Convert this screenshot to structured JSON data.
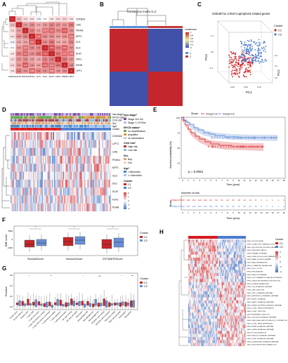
{
  "panels": {
    "A": {
      "letter": "A",
      "genes": [
        "CDKN2A",
        "LIAS",
        "PDHA1",
        "MTF1",
        "GLS",
        "DLD",
        "DLAT",
        "FDX1",
        "PDHB",
        "LIPT1"
      ],
      "values": [
        [
          "1",
          "0.22",
          "0.12",
          "0.10",
          "-0.06",
          "0.01",
          "0.08",
          "0.12",
          "0.14",
          "0.09"
        ],
        [
          "0.22",
          "1",
          "0.33",
          "0.38",
          "0.29",
          "0.34",
          "0.41",
          "0.37",
          "0.35",
          "0.44"
        ],
        [
          "0.12",
          "0.33",
          "1",
          "0.42",
          "0.31",
          "0.47",
          "0.51",
          "0.39",
          "0.56",
          "0.36"
        ],
        [
          "0.10",
          "0.38",
          "0.42",
          "1",
          "0.52",
          "0.40",
          "0.38",
          "0.33",
          "0.36",
          "0.48"
        ],
        [
          "-0.06",
          "0.29",
          "0.31",
          "0.52",
          "1",
          "0.39",
          "0.45",
          "0.28",
          "0.31",
          "0.41"
        ],
        [
          "0.01",
          "0.34",
          "0.47",
          "0.40",
          "0.39",
          "1",
          "0.58",
          "0.42",
          "0.53",
          "0.37"
        ],
        [
          "0.08",
          "0.41",
          "0.51",
          "0.38",
          "0.45",
          "0.58",
          "1",
          "0.44",
          "0.49",
          "0.46"
        ],
        [
          "0.12",
          "0.37",
          "0.39",
          "0.33",
          "0.28",
          "0.42",
          "0.44",
          "1",
          "0.45",
          "0.35"
        ],
        [
          "0.14",
          "0.35",
          "0.56",
          "0.36",
          "0.31",
          "0.53",
          "0.49",
          "0.45",
          "1",
          "0.38"
        ],
        [
          "0.09",
          "0.44",
          "0.36",
          "0.48",
          "0.41",
          "0.37",
          "0.46",
          "0.35",
          "0.38",
          "1"
        ]
      ]
    },
    "B": {
      "letter": "B",
      "title": "Consensus matrix k=2",
      "legend_title": "consensus",
      "legend_ticks": [
        "0",
        "0.2",
        "0.4",
        "0.6",
        "0.8",
        "1"
      ],
      "cluster_labels": [
        "1",
        "2"
      ]
    },
    "C": {
      "letter": "C",
      "title": "GSE48711 cohort-cuproptosis related genes",
      "xlabel": "PC1",
      "ylabel": "PC3",
      "zlabel": "PC2",
      "legend_title": "Cluster",
      "legend_items": [
        "C1",
        "C2"
      ],
      "colors": {
        "C1": "#d7191c",
        "C2": "#4a7bd0"
      }
    },
    "D": {
      "letter": "D",
      "track_labels": [
        "Inss stage*",
        "MYCN status*",
        "COG risk*",
        "Sex",
        "Age*",
        "Cluster"
      ],
      "genes": [
        "CDKN2A",
        "LIPT1",
        "LIAS",
        "PDHA1",
        "MTF1",
        "GLS",
        "DLD",
        "DLAT",
        "FDX1",
        "PDHB"
      ],
      "legend": {
        "inss_title": "Inss stage*",
        "inss": [
          "Stage 3/4-3/4",
          "Stage 1-3+Fl/4s"
        ],
        "mycn_title": "MYCN status*",
        "mycn": [
          "no amplification",
          "amplified",
          "no information"
        ],
        "cog_title": "COG risk*",
        "cog": [
          "High risk",
          "Low risk"
        ],
        "sex_title": "Sex",
        "sex": [
          "Boy",
          "Girl"
        ],
        "age_title": "Age*",
        "age": [
          ">18months",
          "<=18months"
        ],
        "cluster_title": "Cluster",
        "cluster": [
          "C1",
          "C2"
        ],
        "scale_ticks": [
          "2",
          "1",
          "0",
          "-1",
          "-2"
        ]
      }
    },
    "E": {
      "letter": "E",
      "legend_title": "Strata",
      "legend_items": [
        "Group=C1",
        "Group=C2"
      ],
      "ylabel": "Survival probability (%)",
      "xlabel": "Time (year)",
      "x_ticks": [
        "0",
        "1",
        "2",
        "3",
        "4",
        "5",
        "6",
        "7",
        "8",
        "9",
        "10",
        "11",
        "12",
        "13",
        "14",
        "15",
        "16",
        "17",
        "18"
      ],
      "y_ticks": [
        "100",
        "75",
        "50",
        "25",
        "0"
      ],
      "pvalue": "p = 0.0061",
      "risk_title": "Number at risk",
      "risk_strata_label": "Strata",
      "risk_rows": [
        {
          "label": "Group=C1",
          "values": [
            "249",
            "196",
            "152",
            "118",
            "102",
            "82",
            "64",
            "51",
            "43",
            "25",
            "18",
            "13",
            "13",
            "8",
            "3",
            "1",
            "1",
            "1",
            "1"
          ]
        },
        {
          "label": "Group=C2",
          "values": [
            "249",
            "207",
            "182",
            "164",
            "143",
            "118",
            "99",
            "84",
            "65",
            "55",
            "44",
            "30",
            "23",
            "15",
            "9",
            "6",
            "3",
            "1",
            "0"
          ]
        }
      ],
      "risk_xlabel": "Time (year)"
    },
    "F": {
      "letter": "F",
      "ylabel": "TME score",
      "categories": [
        "StromalScore",
        "ImmuneScore",
        "ESTIMATEScore"
      ],
      "sig": [
        "*",
        "*",
        "*"
      ],
      "y_ticks": [
        "2000",
        "0",
        "-2000"
      ],
      "legend_title": "Cluster",
      "legend_items": [
        "C1",
        "C2"
      ]
    },
    "G": {
      "letter": "G",
      "ylabel": "Fraction",
      "y_ticks": [
        "0.6",
        "0.4",
        "0.2",
        "0.0"
      ],
      "legend_title": "Cluster",
      "legend_items": [
        "C1",
        "C2"
      ],
      "cells": [
        "B cells naive",
        "B cells memory",
        "Plasma cells",
        "T cells CD8",
        "T cells CD4 naive",
        "T cells CD4 memory resting",
        "T cells CD4 memory activated",
        "T cells follicular helper",
        "T cells regulatory",
        "T cells gamma delta",
        "NK cells resting",
        "NK cells activated",
        "Monocytes",
        "Macrophages M0",
        "Macrophages M1",
        "Macrophages M2",
        "Dendritic cells resting",
        "Dendritic cells activated",
        "Mast cells resting",
        "Mast cells activated",
        "Eosinophils",
        "Neutrophils"
      ],
      "sig": [
        "",
        "",
        "*",
        "",
        "",
        "",
        "**",
        "",
        "",
        "",
        "",
        "",
        "*",
        "",
        "",
        "ns",
        "",
        "",
        "",
        "*",
        "",
        "***"
      ]
    },
    "H": {
      "letter": "H",
      "legend_title": "Cluster",
      "legend_items": [
        "C1",
        "C2"
      ],
      "scale_ticks": [
        "4",
        "2",
        "0",
        "-2",
        "-4"
      ],
      "pathways": [
        "KEGG_SPLICEOSOME",
        "KEGG_OLFACTORY_TRANSDUCTION",
        "KEGG_NUCLEOTIDE_EXCISION_REPAIR",
        "KEGG_DNA_REPLICATION",
        "KEGG_MISMATCH_REPAIR",
        "KEGG_HOMOLOGOUS_RECOMBINATION",
        "KEGG_BASE_EXCISION_REPAIR",
        "KEGG_RNA_DEGRADATION",
        "KEGG_PYRIMIDINE_METABOLISM",
        "KEGG_CELL_CYCLE",
        "KEGG_PROTEASOME",
        "KEGG_RNA_POLYMERASE",
        "KEGG_GLYCOSAMINOGLYCAN_BIOSYNTHESIS",
        "KEGG_UBIQUITIN_MEDIATED_PROTEOLYSIS",
        "KEGG_PURINE_METABOLISM",
        "KEGG_P53_SIGNALING_PATHWAY",
        "KEGG_GAP_JUNCTION",
        "KEGG_WNT_SIGNALING_PATHWAY",
        "KEGG_HEDGEHOG_SIGNALING_PATHWAY",
        "KEGG_AXON_GUIDANCE",
        "KEGG_MAPK_SIGNALING_PATHWAY",
        "KEGG_NEUROTROPHIN_SIGNALING_PATHWAY",
        "KEGG_LONG_TERM_POTENTIATION",
        "KEGG_TIGHT_JUNCTION",
        "KEGG_ADHERENS_JUNCTION",
        "KEGG_CALCIUM_SIGNALING_PATHWAY",
        "KEGG_VASCULAR_SMOOTH_MUSCLE_CONTRACTION",
        "KEGG_LONG_TERM_DEPRESSION",
        "KEGG_ERBB_SIGNALING_PATHWAY",
        "KEGG_GNRH_SIGNALING_PATHWAY",
        "KEGG_FOCAL_ADHESION",
        "KEGG_INSULIN_SIGNALING_PATHWAY",
        "KEGG_VEGF_SIGNALING_PATHWAY",
        "KEGG_CHEMOKINE_SIGNALING_PATHWAY",
        "KEGG_ECM_RECEPTOR_INTERACTION"
      ]
    }
  }
}
